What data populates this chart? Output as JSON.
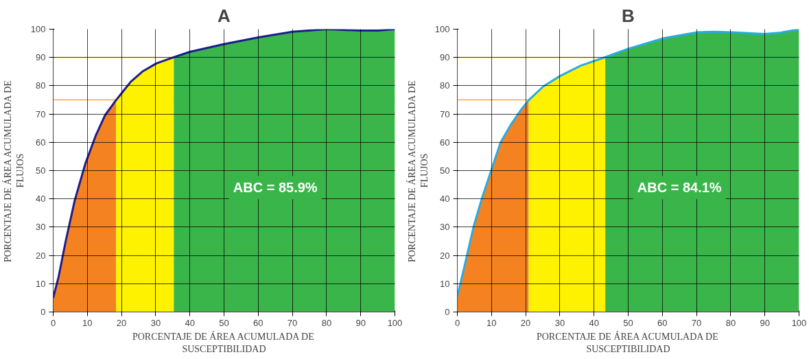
{
  "chart_data": [
    {
      "type": "area",
      "title": "A",
      "xlabel": "PORCENTAJE DE ÁREA ACUMULADA DE\nSUSCEPTIBILIDAD",
      "ylabel": "PORCENTAJE DE ÁREA ACUMULADA DE\nFLUJOS",
      "xlim": [
        0,
        100
      ],
      "ylim": [
        0,
        100
      ],
      "xticks": [
        0,
        10,
        20,
        30,
        40,
        50,
        60,
        70,
        80,
        90,
        100
      ],
      "yticks": [
        0,
        10,
        20,
        30,
        40,
        50,
        60,
        70,
        80,
        90,
        100
      ],
      "grid": true,
      "annotations": [
        "ABC = 85.9%"
      ],
      "ref_lines": [
        {
          "axis": "y",
          "value": 75,
          "label": null,
          "color": "#f7a15a"
        },
        {
          "axis": "y",
          "value": 90,
          "label": null,
          "color": "#fff200"
        }
      ],
      "series": [
        {
          "color": "#f58220",
          "x": [
            0,
            1.6,
            3.6,
            6.3,
            9.4,
            12.4,
            15.2,
            18.4
          ],
          "values": [
            5,
            12.5,
            24.7,
            39.4,
            52.4,
            62.2,
            69.6,
            74.9
          ]
        },
        {
          "color": "#fff200",
          "x": [
            18.4,
            20,
            22.7,
            26.1,
            30.2,
            35.3
          ],
          "values": [
            74.9,
            77.3,
            81.4,
            85,
            87.9,
            90.1
          ]
        },
        {
          "color": "#3ab54a",
          "x": [
            35.3,
            40,
            50,
            60,
            70,
            80,
            90,
            95,
            100
          ],
          "values": [
            90.1,
            92,
            94.7,
            97.1,
            99.1,
            100,
            99.5,
            99.5,
            100
          ]
        },
        {
          "type": "line",
          "color": "#1c1c8f",
          "x": [
            0,
            1.6,
            3.6,
            6.3,
            9.4,
            12.4,
            15.2,
            18.4,
            20,
            22.7,
            26.1,
            30.2,
            35.3,
            40,
            50,
            60,
            70,
            80,
            90,
            95,
            100
          ],
          "values": [
            5,
            12.5,
            24.7,
            39.4,
            52.4,
            62.2,
            69.6,
            74.9,
            77.3,
            81.4,
            85,
            87.9,
            90.1,
            92,
            94.7,
            97.1,
            99.1,
            100,
            99.5,
            99.5,
            100
          ]
        }
      ]
    },
    {
      "type": "area",
      "title": "B",
      "xlabel": "PORCENTAJE DE ÁREA ACUMULADA DE\nSUSCEPTIBILIDAD",
      "ylabel": "PORCENTAJE DE ÁREA ACUMULADA DE\nFLUJOS",
      "xlim": [
        0,
        100
      ],
      "ylim": [
        0,
        100
      ],
      "xticks": [
        0,
        10,
        20,
        30,
        40,
        50,
        60,
        70,
        80,
        90,
        100
      ],
      "yticks": [
        0,
        10,
        20,
        30,
        40,
        50,
        60,
        70,
        80,
        90,
        100
      ],
      "grid": true,
      "annotations": [
        "ABC = 84.1%"
      ],
      "ref_lines": [
        {
          "axis": "y",
          "value": 75,
          "label": null,
          "color": "#f7a15a"
        },
        {
          "axis": "y",
          "value": 90,
          "label": null,
          "color": "#fff200"
        }
      ],
      "series": [
        {
          "color": "#f58220",
          "x": [
            0,
            2,
            4.8,
            7.2,
            9.9,
            12.6,
            15.7,
            18.7,
            20.9
          ],
          "values": [
            5.5,
            15.7,
            30.4,
            40.2,
            50,
            59.8,
            66.3,
            71.6,
            74.9
          ]
        },
        {
          "color": "#fff200",
          "x": [
            20.9,
            25.2,
            30,
            36.1,
            43.3
          ],
          "values": [
            74.9,
            79.8,
            83.4,
            87.1,
            90.1
          ]
        },
        {
          "color": "#3ab54a",
          "x": [
            43.3,
            50.1,
            60,
            70.2,
            75,
            80.4,
            89.9,
            94.7,
            100
          ],
          "values": [
            90.1,
            93.1,
            96.7,
            98.9,
            99.1,
            98.9,
            98.3,
            98.8,
            100
          ]
        },
        {
          "type": "line",
          "color": "#29abe2",
          "x": [
            0,
            2,
            4.8,
            7.2,
            9.9,
            12.6,
            15.7,
            18.7,
            20.9,
            25.2,
            30,
            36.1,
            43.3,
            50.1,
            60,
            70.2,
            75,
            80.4,
            89.9,
            94.7,
            100
          ],
          "values": [
            5.5,
            15.7,
            30.4,
            40.2,
            50,
            59.8,
            66.3,
            71.6,
            74.9,
            79.8,
            83.4,
            87.1,
            90.1,
            93.1,
            96.7,
            98.9,
            99.1,
            98.9,
            98.3,
            98.8,
            100
          ]
        }
      ]
    }
  ]
}
